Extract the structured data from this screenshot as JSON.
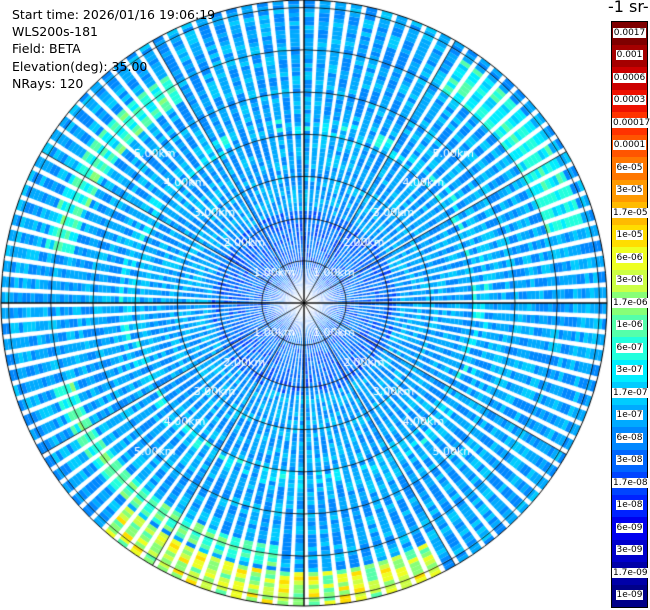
{
  "info": {
    "start_time": "Start time: 2026/01/16 19:06:19",
    "instrument": "WLS200s-181",
    "field": "Field: BETA",
    "elevation": "Elevation(deg): 35.00",
    "nrays": "NRays: 120"
  },
  "colorbar": {
    "unit_title": "-1 sr-",
    "labels": [
      "0.0017",
      "0.001",
      "0.0006",
      "0.0003",
      "0.00017",
      "0.0001",
      "6e-05",
      "3e-05",
      "1.7e-05",
      "1e-05",
      "6e-06",
      "3e-06",
      "1.7e-06",
      "1e-06",
      "6e-07",
      "3e-07",
      "1.7e-07",
      "1e-07",
      "6e-08",
      "3e-08",
      "1.7e-08",
      "1e-08",
      "6e-09",
      "3e-09",
      "1.7e-09",
      "1e-09"
    ],
    "colors": [
      "#7f0000",
      "#a50000",
      "#cc0000",
      "#ee1100",
      "#ff3300",
      "#ff5500",
      "#ff7700",
      "#ff9900",
      "#ffbb00",
      "#ffdd00",
      "#eeff22",
      "#ccff44",
      "#88ff77",
      "#55ffaa",
      "#22ffdd",
      "#00eeff",
      "#00ccff",
      "#00aaff",
      "#0088ff",
      "#0066ff",
      "#0044ff",
      "#0022ff",
      "#0000ee",
      "#0000cc",
      "#0000a8",
      "#000088"
    ]
  },
  "range_rings": {
    "labels": [
      "1.00km",
      "2.00km",
      "3.00km",
      "4.00km",
      "5.00km"
    ]
  }
}
